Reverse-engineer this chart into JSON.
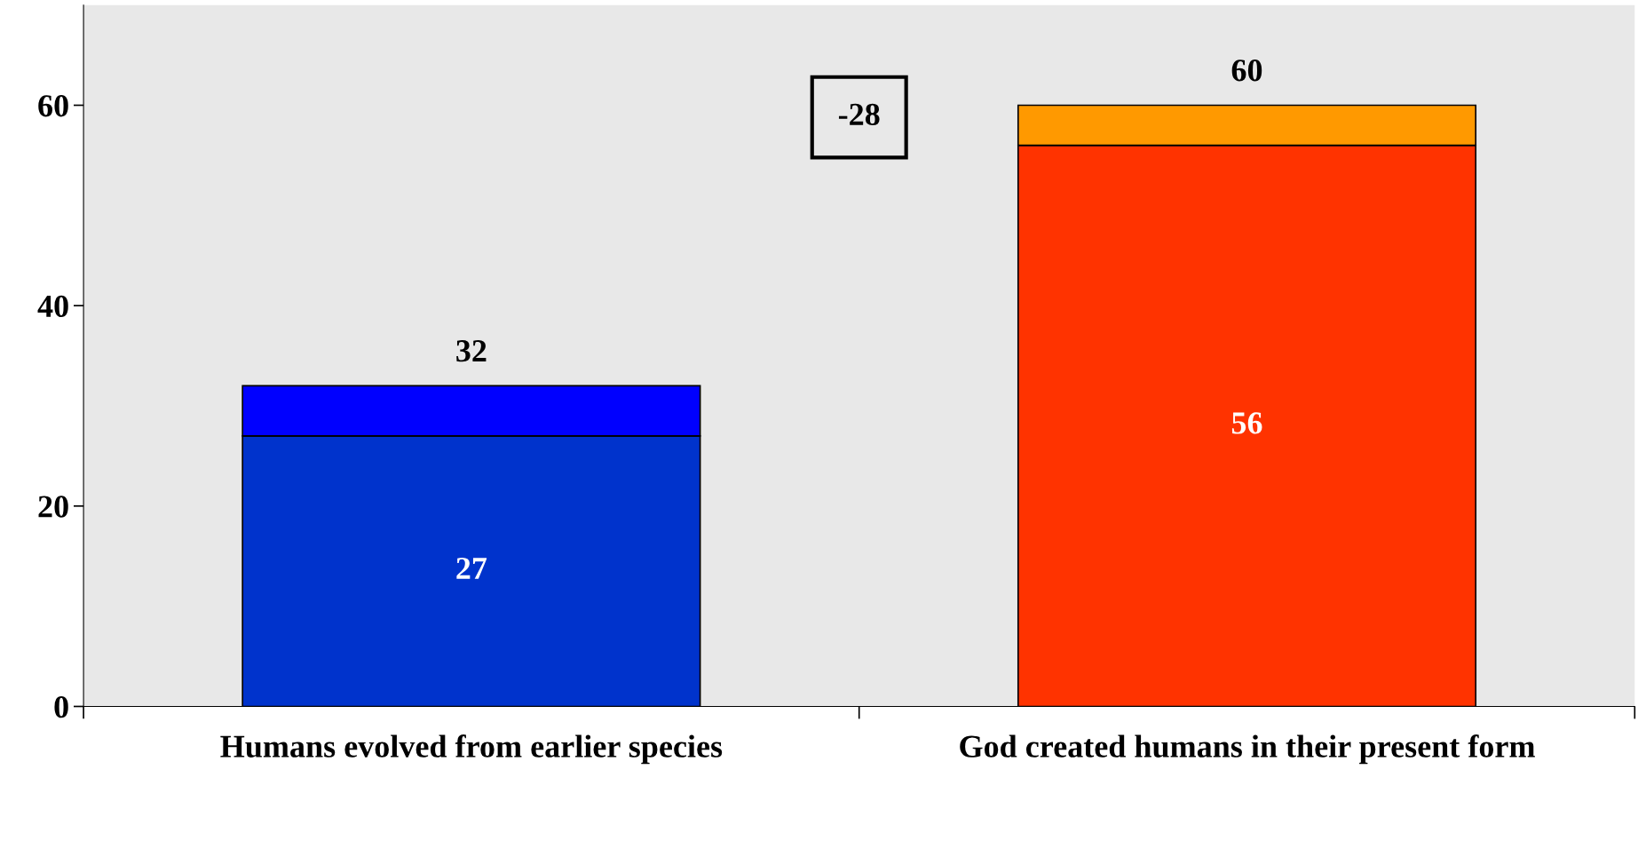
{
  "chart_data": {
    "type": "bar",
    "stacked": true,
    "categories": [
      "Humans evolved from earlier species",
      "God created humans in their present form"
    ],
    "series": [
      {
        "values": [
          27,
          56
        ],
        "colors": [
          "#0033cc",
          "#ff3300"
        ],
        "value_labels": [
          "27",
          "56"
        ]
      },
      {
        "values": [
          5,
          4
        ],
        "colors": [
          "#0000ff",
          "#ff9900"
        ]
      }
    ],
    "totals": [
      "32",
      "60"
    ],
    "annotations": [
      "-28"
    ],
    "ylim": [
      0,
      70
    ],
    "yticks": [
      0,
      20,
      40,
      60
    ],
    "grid": false,
    "legend": false
  }
}
